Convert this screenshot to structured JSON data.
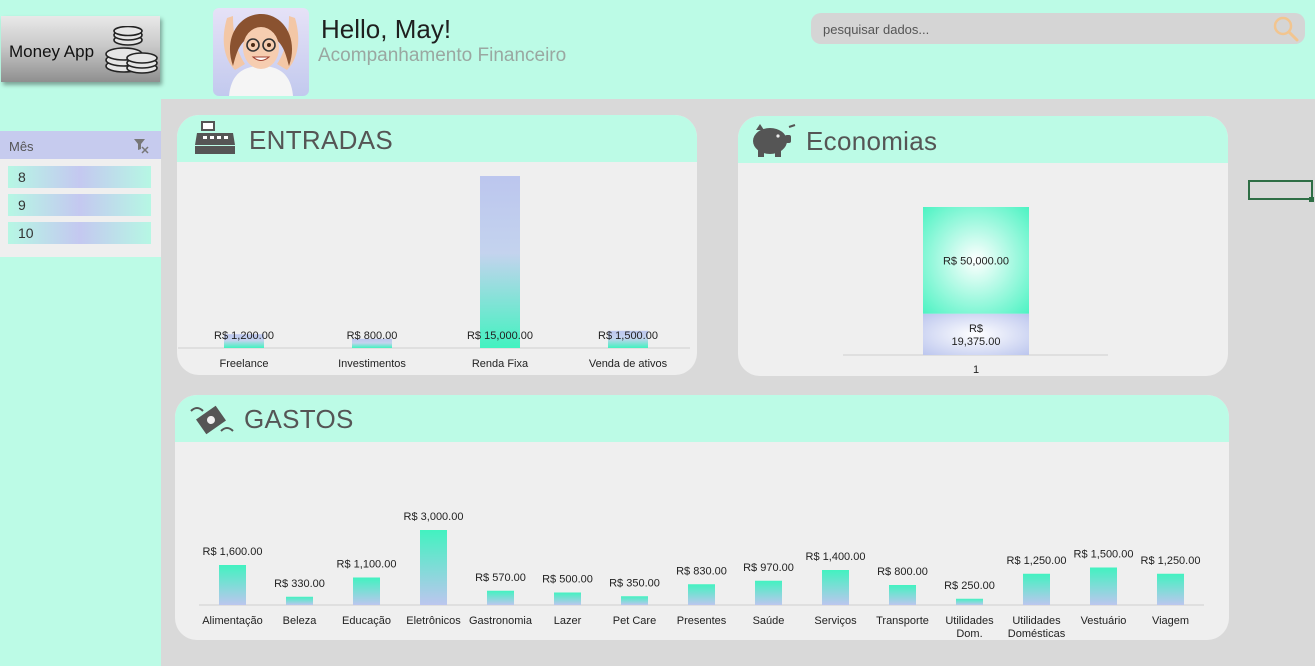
{
  "app": {
    "logo_text": "Money App",
    "greeting": "Hello, May!",
    "subtitle": "Acompanhamento Financeiro"
  },
  "search": {
    "placeholder": "pesquisar dados..."
  },
  "slicer": {
    "title": "Mês",
    "items": [
      "8",
      "9",
      "10"
    ]
  },
  "cards": {
    "entradas": "ENTRADAS",
    "economias": "Economias",
    "gastos": "GASTOS"
  },
  "colors": {
    "accent_mint": "#bcfbe6",
    "accent_lavender": "#c4c8f0",
    "bar_mint": "#4df3c3",
    "bar_lavender": "#b9c3ee"
  },
  "chart_data": [
    {
      "id": "entradas",
      "type": "bar",
      "categories": [
        "Freelance",
        "Investimentos",
        "Renda Fixa",
        "Venda de ativos"
      ],
      "values": [
        1200,
        800,
        15000,
        1500
      ],
      "labels": [
        "R$ 1,200.00",
        "R$ 800.00",
        "R$ 15,000.00",
        "R$ 1,500.00"
      ],
      "ylim": [
        0,
        15000
      ]
    },
    {
      "id": "economias",
      "type": "bar",
      "categories": [
        "1"
      ],
      "series": [
        {
          "values": [
            19375
          ],
          "label": "R$ 19,375.00"
        },
        {
          "values": [
            50000
          ],
          "label": "R$ 50,000.00"
        }
      ],
      "stacked": true
    },
    {
      "id": "gastos",
      "type": "bar",
      "categories": [
        "Alimentação",
        "Beleza",
        "Educação",
        "Eletrônicos",
        "Gastronomia",
        "Lazer",
        "Pet Care",
        "Presentes",
        "Saúde",
        "Serviços",
        "Transporte",
        "Utilidades Dom.",
        "Utilidades Domésticas",
        "Vestuário",
        "Viagem"
      ],
      "values": [
        1600,
        330,
        1100,
        3000,
        570,
        500,
        350,
        830,
        970,
        1400,
        800,
        250,
        1250,
        1500,
        1250
      ],
      "labels": [
        "R$ 1,600.00",
        "R$ 330.00",
        "R$ 1,100.00",
        "R$ 3,000.00",
        "R$ 570.00",
        "R$ 500.00",
        "R$ 350.00",
        "R$ 830.00",
        "R$ 970.00",
        "R$ 1,400.00",
        "R$ 800.00",
        "R$ 250.00",
        "R$ 1,250.00",
        "R$ 1,500.00",
        "R$ 1,250.00"
      ],
      "ylim": [
        0,
        3000
      ]
    }
  ]
}
